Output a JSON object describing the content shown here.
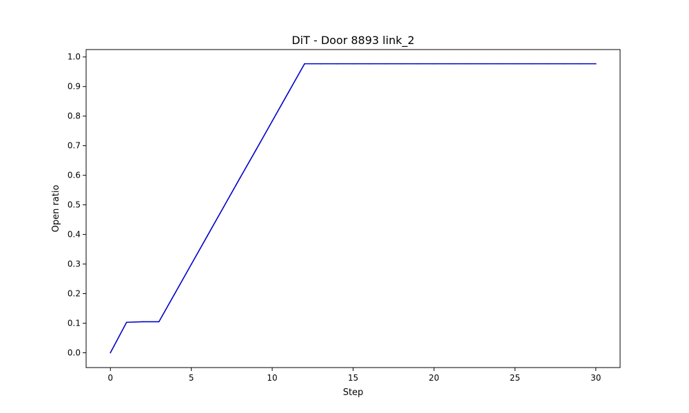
{
  "chart_data": {
    "type": "line",
    "title": "DiT - Door 8893 link_2",
    "xlabel": "Step",
    "ylabel": "Open ratio",
    "xlim": [
      -1.5,
      31.5
    ],
    "ylim": [
      -0.05,
      1.025
    ],
    "xticks": [
      0,
      5,
      10,
      15,
      20,
      25,
      30
    ],
    "yticks": [
      0.0,
      0.1,
      0.2,
      0.3,
      0.4,
      0.5,
      0.6,
      0.7,
      0.8,
      0.9,
      1.0
    ],
    "xtick_labels": [
      "0",
      "5",
      "10",
      "15",
      "20",
      "25",
      "30"
    ],
    "ytick_labels": [
      "0.0",
      "0.1",
      "0.2",
      "0.3",
      "0.4",
      "0.5",
      "0.6",
      "0.7",
      "0.8",
      "0.9",
      "1.0"
    ],
    "grid": false,
    "series": [
      {
        "color": "#0000cc",
        "x": [
          0,
          1,
          2,
          3,
          4,
          5,
          6,
          7,
          8,
          9,
          10,
          11,
          12,
          13,
          14,
          15,
          16,
          17,
          18,
          19,
          20,
          21,
          22,
          23,
          24,
          25,
          26,
          27,
          28,
          29,
          30
        ],
        "y": [
          0.0,
          0.103,
          0.105,
          0.105,
          0.202,
          0.299,
          0.396,
          0.493,
          0.59,
          0.686,
          0.783,
          0.88,
          0.977,
          0.977,
          0.977,
          0.977,
          0.977,
          0.977,
          0.977,
          0.977,
          0.977,
          0.977,
          0.977,
          0.977,
          0.977,
          0.977,
          0.977,
          0.977,
          0.977,
          0.977,
          0.977
        ]
      }
    ]
  }
}
